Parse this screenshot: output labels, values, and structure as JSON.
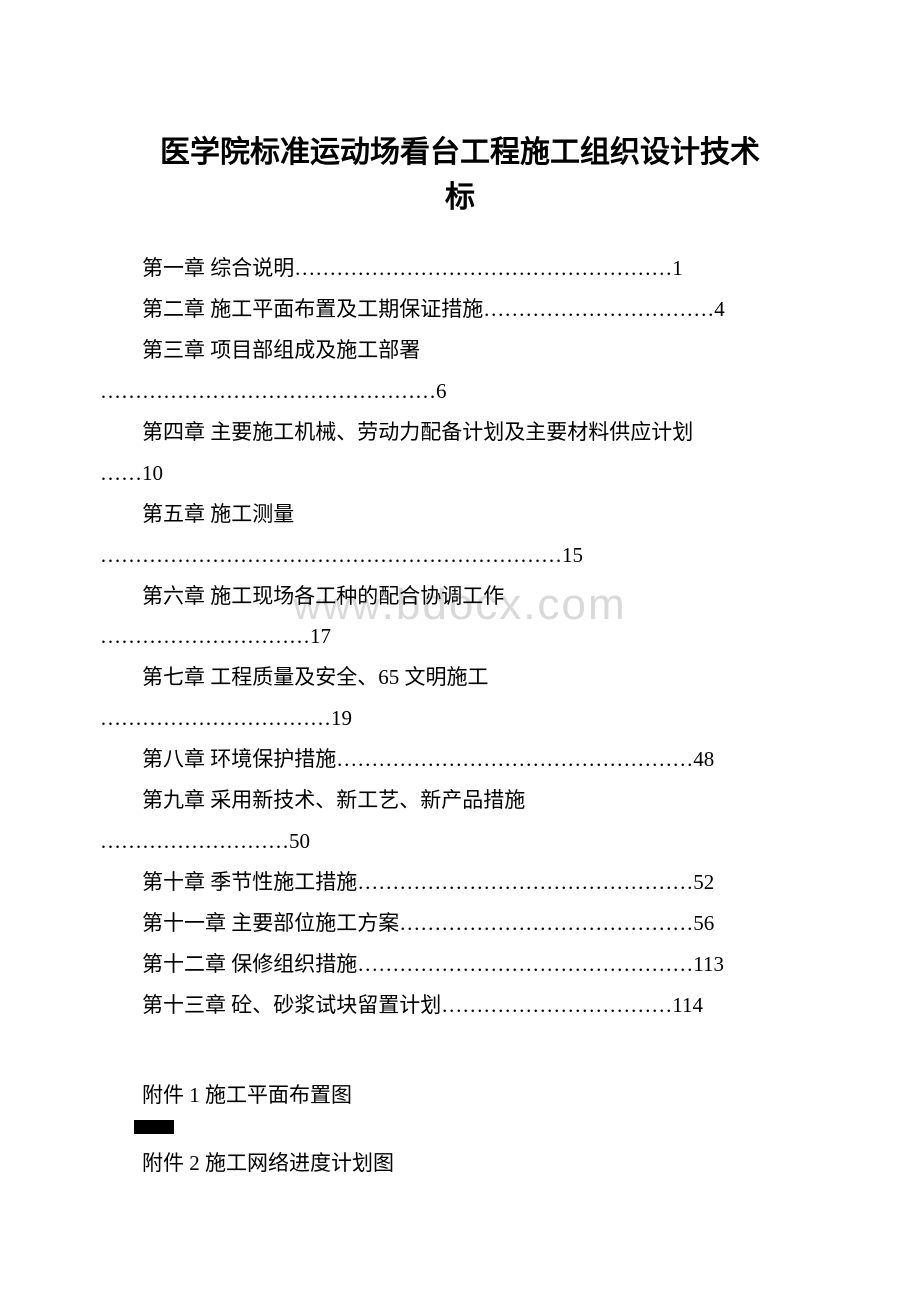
{
  "title_line1": "医学院标准运动场看台工程施工组织设计技术",
  "title_line2": "标",
  "toc": [
    {
      "line1": "第一章 综合说明………………………………………………1"
    },
    {
      "line1": "第二章 施工平面布置及工期保证措施……………………………4"
    },
    {
      "line1": "第三章 项目部组成及施工部署",
      "line2": "…………………………………………6"
    },
    {
      "line1": "第四章 主要施工机械、劳动力配备计划及主要材料供应计划",
      "line2": "……10"
    },
    {
      "line1": "第五章 施工测量",
      "line2": "…………………………………………………………15"
    },
    {
      "line1": "第六章 施工现场各工种的配合协调工作",
      "line2": "…………………………17"
    },
    {
      "line1": "第七章 工程质量及安全、65 文明施工",
      "line2": "……………………………19"
    },
    {
      "line1": "第八章 环境保护措施……………………………………………48"
    },
    {
      "line1": "第九章 采用新技术、新工艺、新产品措施",
      "line2": "………………………50"
    },
    {
      "line1": "第十章 季节性施工措施…………………………………………52"
    },
    {
      "line1": "第十一章 主要部位施工方案……………………………………56"
    },
    {
      "line1": "第十二章 保修组织措施…………………………………………113"
    },
    {
      "line1": "第十三章 砼、砂浆试块留置计划……………………………114"
    }
  ],
  "attachments": [
    "附件 1 施工平面布置图",
    "附件 2 施工网络进度计划图"
  ],
  "watermark": "www.bdocx.com",
  "colors": {
    "text": "#000000",
    "background": "#ffffff",
    "watermark": "#d9d9d9"
  },
  "typography": {
    "title_fontsize": 30,
    "body_fontsize": 21,
    "title_font": "SimHei",
    "body_font": "SimSun"
  }
}
